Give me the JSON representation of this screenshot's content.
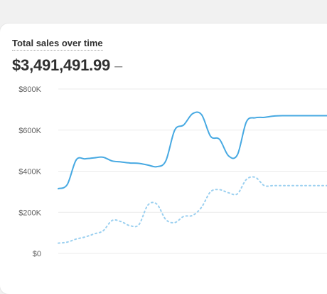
{
  "card": {
    "title": "Total sales over time",
    "total_value": "$3,491,491.99",
    "change_indicator": "–"
  },
  "colors": {
    "primary_series": "#47a9e2",
    "comparison_series": "#9bd0f0",
    "grid": "#ebebeb"
  },
  "chart_data": {
    "type": "line",
    "title": "Total sales over time",
    "ylim": [
      0,
      800000
    ],
    "y_ticks": [
      {
        "value": 800000,
        "label": "$800K"
      },
      {
        "value": 600000,
        "label": "$600K"
      },
      {
        "value": 400000,
        "label": "$400K"
      },
      {
        "value": 200000,
        "label": "$200K"
      },
      {
        "value": 0,
        "label": "$0"
      }
    ],
    "x": [
      0,
      1,
      2,
      3,
      4,
      5,
      6,
      7,
      8,
      9,
      10,
      11,
      12,
      13,
      14,
      15,
      16,
      17,
      18,
      19,
      20,
      21,
      22,
      23,
      24,
      25,
      26,
      27,
      28,
      29,
      30,
      31
    ],
    "series": [
      {
        "role": "current",
        "values": [
          315000,
          335000,
          455000,
          460000,
          465000,
          468000,
          450000,
          445000,
          440000,
          438000,
          430000,
          422000,
          450000,
          600000,
          625000,
          680000,
          675000,
          570000,
          555000,
          475000,
          480000,
          640000,
          660000,
          662000,
          668000,
          670000,
          670000,
          670000,
          670000,
          670000,
          670000,
          670000
        ]
      },
      {
        "role": "comparison",
        "values": [
          50000,
          55000,
          70000,
          80000,
          95000,
          110000,
          160000,
          155000,
          135000,
          140000,
          235000,
          240000,
          165000,
          150000,
          180000,
          185000,
          225000,
          300000,
          310000,
          295000,
          290000,
          360000,
          370000,
          330000,
          330000,
          330000,
          330000,
          330000,
          330000,
          330000,
          330000,
          330000
        ]
      }
    ],
    "grid": true,
    "legend": "none"
  }
}
